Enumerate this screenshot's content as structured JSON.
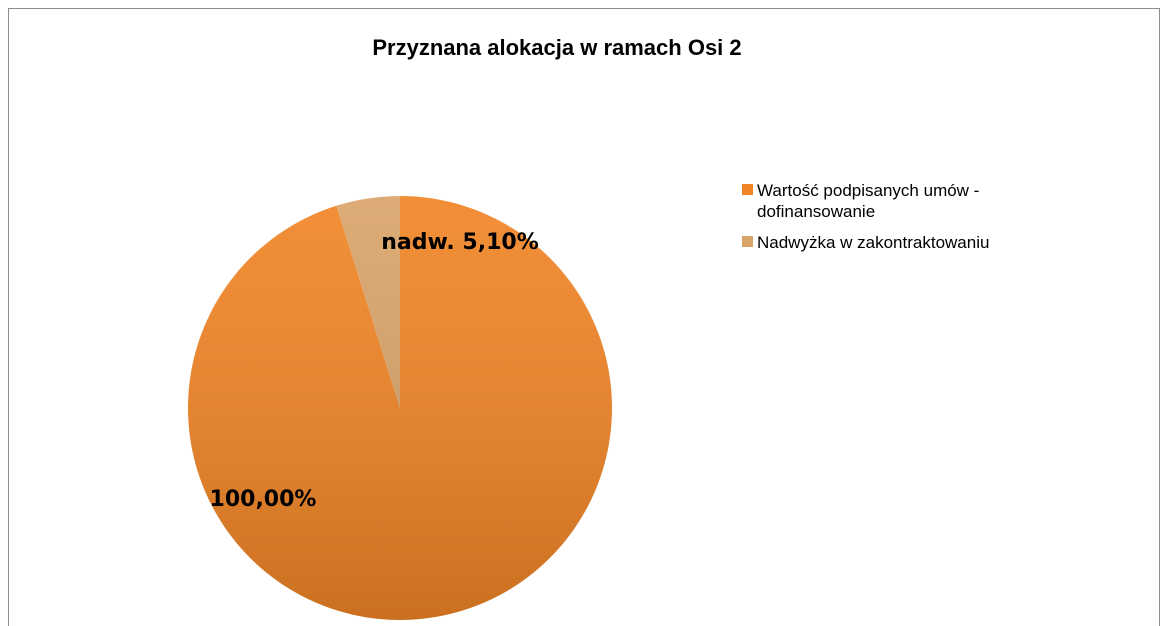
{
  "chart_data": {
    "type": "pie",
    "title": "Przyznana alokacja w ramach Osi 2",
    "categories": [
      "Wartość podpisanych umów - dofinansowanie",
      "Nadwyżka w zakontraktowaniu"
    ],
    "values": [
      100,
      5.1
    ],
    "value_labels": [
      "100,00%",
      "nadw. 5,10%"
    ],
    "colors": [
      "#f18526",
      "#d9a46a"
    ],
    "legend": "right"
  }
}
